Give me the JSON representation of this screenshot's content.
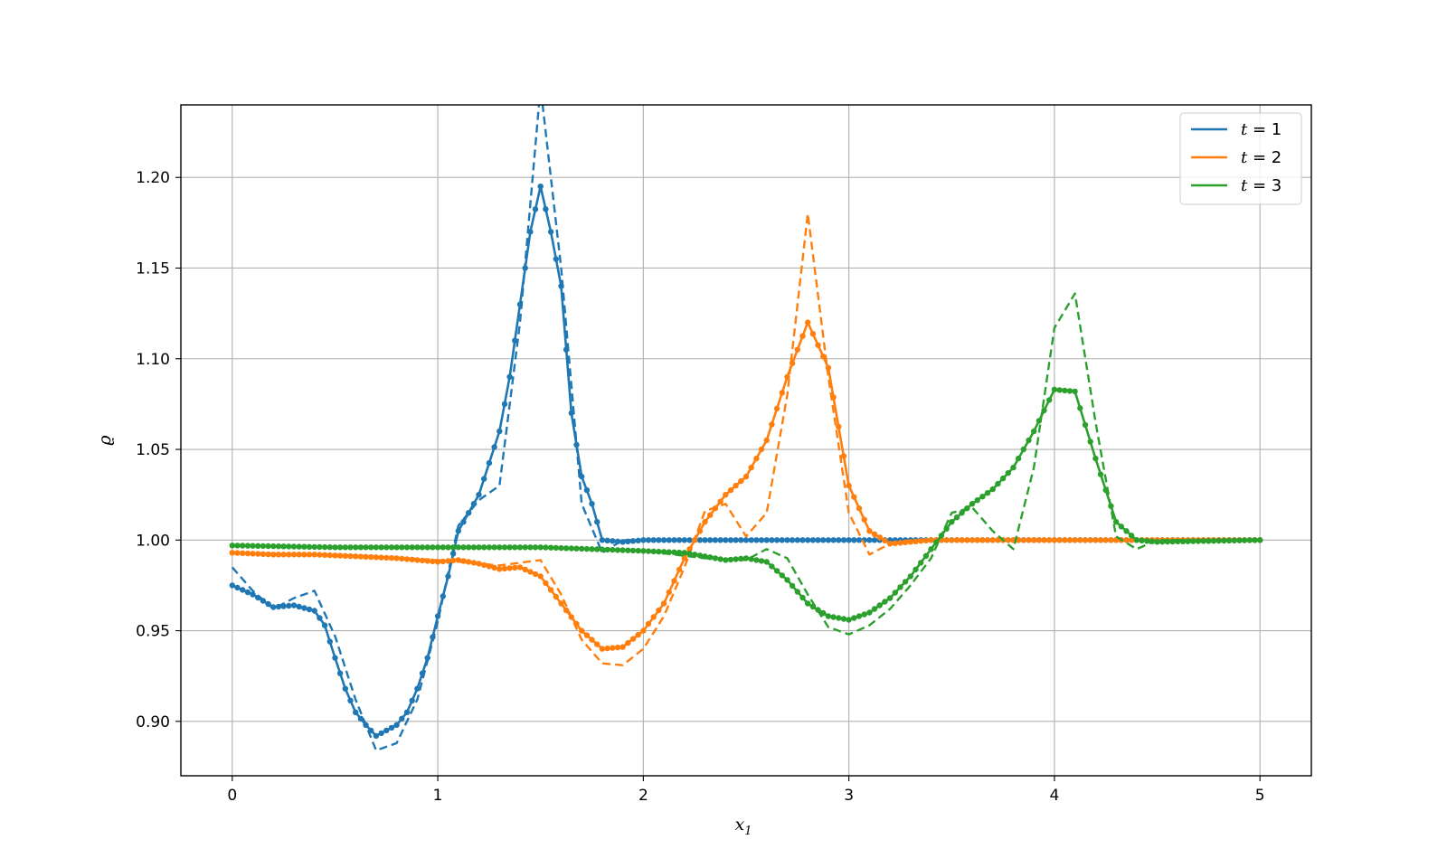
{
  "chart_data": {
    "type": "line",
    "title": "",
    "xlabel": "x",
    "xlabel_sub": "1",
    "ylabel": "ϱ",
    "xlim": [
      -0.25,
      5.25
    ],
    "ylim": [
      0.87,
      1.24
    ],
    "xticks": [
      0,
      1,
      2,
      3,
      4,
      5
    ],
    "xtick_labels": [
      "0",
      "1",
      "2",
      "3",
      "4",
      "5"
    ],
    "yticks": [
      0.9,
      0.95,
      1.0,
      1.05,
      1.1,
      1.15,
      1.2
    ],
    "ytick_labels": [
      "0.90",
      "0.95",
      "1.00",
      "1.05",
      "1.10",
      "1.15",
      "1.20"
    ],
    "grid": true,
    "legend_position": "top-right",
    "series": [
      {
        "name": "t = 1",
        "legend_var": "t",
        "legend_val": "1",
        "color": "#1f77b4",
        "solid": {
          "x": [
            0,
            0.1,
            0.2,
            0.3,
            0.4,
            0.45,
            0.5,
            0.55,
            0.6,
            0.65,
            0.7,
            0.8,
            0.85,
            0.9,
            0.95,
            1.0,
            1.05,
            1.1,
            1.2,
            1.3,
            1.35,
            1.4,
            1.45,
            1.5,
            1.55,
            1.6,
            1.65,
            1.7,
            1.75,
            1.8,
            1.9,
            2.0,
            2.5,
            3.0,
            3.5,
            4.0,
            4.5,
            5.0
          ],
          "y": [
            0.975,
            0.97,
            0.963,
            0.964,
            0.961,
            0.953,
            0.935,
            0.918,
            0.905,
            0.898,
            0.892,
            0.898,
            0.905,
            0.918,
            0.935,
            0.958,
            0.98,
            1.005,
            1.025,
            1.06,
            1.09,
            1.13,
            1.17,
            1.195,
            1.17,
            1.14,
            1.07,
            1.035,
            1.02,
            1.0,
            0.999,
            1.0,
            1.0,
            1.0,
            1.0,
            1.0,
            1.0,
            1.0
          ]
        },
        "dashed": {
          "x": [
            0,
            0.1,
            0.2,
            0.3,
            0.4,
            0.5,
            0.6,
            0.7,
            0.8,
            0.9,
            1.0,
            1.1,
            1.2,
            1.3,
            1.4,
            1.5,
            1.6,
            1.7,
            1.8,
            1.9,
            2.0,
            2.5,
            3.0,
            4.0,
            5.0
          ],
          "y": [
            0.985,
            0.972,
            0.962,
            0.968,
            0.972,
            0.947,
            0.912,
            0.884,
            0.888,
            0.912,
            0.955,
            1.008,
            1.022,
            1.03,
            1.12,
            1.25,
            1.15,
            1.02,
            0.993,
            1.0,
            1.0,
            1.0,
            1.0,
            1.0,
            1.0
          ]
        }
      },
      {
        "name": "t = 2",
        "legend_var": "t",
        "legend_val": "2",
        "color": "#ff7f0e",
        "solid": {
          "x": [
            0,
            0.2,
            0.4,
            0.6,
            0.8,
            0.9,
            1.0,
            1.1,
            1.2,
            1.3,
            1.4,
            1.5,
            1.6,
            1.7,
            1.8,
            1.9,
            2.0,
            2.1,
            2.2,
            2.3,
            2.4,
            2.5,
            2.6,
            2.7,
            2.8,
            2.9,
            3.0,
            3.1,
            3.2,
            3.4,
            4.0,
            4.5,
            5.0
          ],
          "y": [
            0.993,
            0.992,
            0.992,
            0.991,
            0.99,
            0.989,
            0.988,
            0.989,
            0.987,
            0.984,
            0.985,
            0.98,
            0.965,
            0.95,
            0.94,
            0.941,
            0.95,
            0.965,
            0.99,
            1.01,
            1.025,
            1.035,
            1.055,
            1.09,
            1.12,
            1.095,
            1.03,
            1.005,
            0.998,
            1.0,
            1.0,
            1.0,
            1.0
          ]
        },
        "dashed": {
          "x": [
            0,
            0.5,
            1.0,
            1.3,
            1.5,
            1.6,
            1.7,
            1.8,
            1.9,
            2.0,
            2.1,
            2.2,
            2.3,
            2.4,
            2.5,
            2.6,
            2.7,
            2.8,
            2.9,
            3.0,
            3.1,
            3.2,
            3.3,
            3.5,
            4.0,
            4.5,
            5.0
          ],
          "y": [
            0.993,
            0.992,
            0.989,
            0.986,
            0.989,
            0.97,
            0.945,
            0.932,
            0.931,
            0.94,
            0.958,
            0.985,
            1.016,
            1.02,
            1.002,
            1.015,
            1.08,
            1.18,
            1.09,
            1.015,
            0.992,
            0.998,
            1.0,
            1.0,
            1.0,
            1.0,
            1.0
          ]
        }
      },
      {
        "name": "t = 3",
        "legend_var": "t",
        "legend_val": "3",
        "color": "#2ca02c",
        "solid": {
          "x": [
            0,
            0.5,
            1.0,
            1.5,
            2.0,
            2.2,
            2.4,
            2.5,
            2.6,
            2.7,
            2.8,
            2.9,
            3.0,
            3.1,
            3.2,
            3.3,
            3.4,
            3.5,
            3.6,
            3.7,
            3.8,
            3.9,
            4.0,
            4.1,
            4.2,
            4.3,
            4.4,
            4.5,
            5.0
          ],
          "y": [
            0.997,
            0.996,
            0.996,
            0.996,
            0.994,
            0.993,
            0.989,
            0.99,
            0.988,
            0.978,
            0.965,
            0.958,
            0.956,
            0.96,
            0.968,
            0.98,
            0.995,
            1.01,
            1.02,
            1.028,
            1.04,
            1.06,
            1.083,
            1.082,
            1.045,
            1.01,
            1.0,
            0.999,
            1.0
          ]
        },
        "dashed": {
          "x": [
            0,
            0.5,
            1.0,
            1.5,
            2.0,
            2.3,
            2.5,
            2.6,
            2.7,
            2.8,
            2.9,
            3.0,
            3.1,
            3.2,
            3.3,
            3.4,
            3.5,
            3.6,
            3.7,
            3.8,
            3.9,
            4.0,
            4.1,
            4.2,
            4.3,
            4.4,
            4.5,
            5.0
          ],
          "y": [
            0.997,
            0.996,
            0.996,
            0.996,
            0.994,
            0.99,
            0.989,
            0.995,
            0.99,
            0.97,
            0.952,
            0.948,
            0.953,
            0.962,
            0.975,
            0.99,
            1.015,
            1.018,
            1.005,
            0.995,
            1.04,
            1.117,
            1.136,
            1.065,
            1.002,
            0.995,
            1.0,
            1.0
          ]
        }
      }
    ]
  }
}
